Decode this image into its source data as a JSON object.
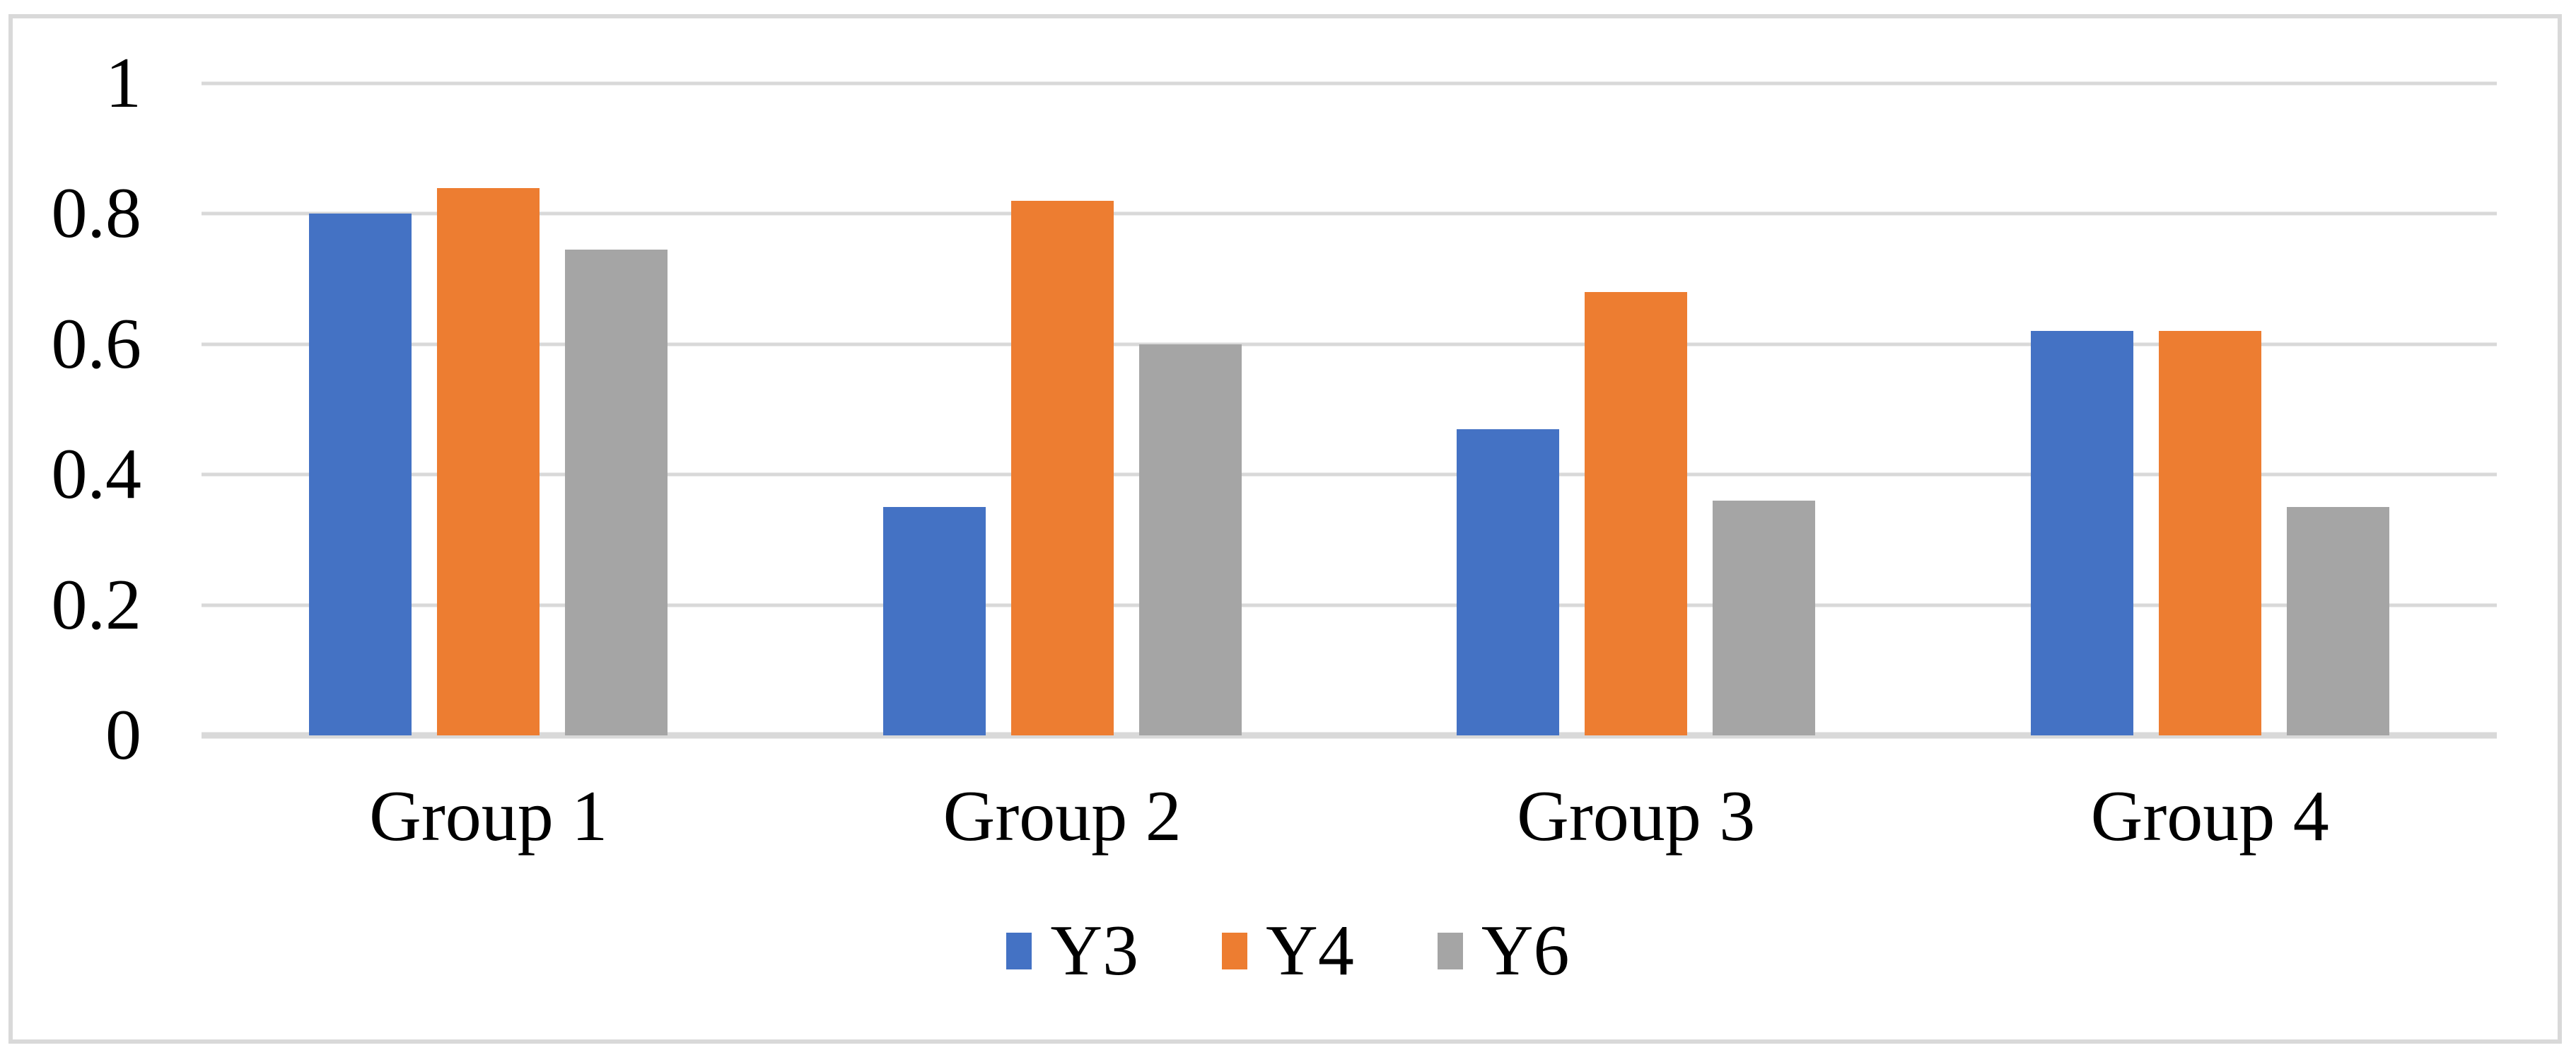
{
  "figure": {
    "background": "#ffffff",
    "border_color": "#d9d9d9",
    "text_color": "#000000"
  },
  "chart_data": {
    "type": "bar",
    "title": "",
    "xlabel": "",
    "ylabel": "",
    "categories": [
      "Group 1",
      "Group 2",
      "Group 3",
      "Group 4"
    ],
    "series": [
      {
        "name": "Y3",
        "color": "#4472C4",
        "values": [
          0.8,
          0.35,
          0.47,
          0.62
        ]
      },
      {
        "name": "Y4",
        "color": "#ED7D31",
        "values": [
          0.84,
          0.82,
          0.68,
          0.62
        ]
      },
      {
        "name": "Y6",
        "color": "#A5A5A5",
        "values": [
          0.745,
          0.6,
          0.36,
          0.35
        ]
      }
    ],
    "ylim": [
      0,
      1
    ],
    "yticks": [
      0,
      0.2,
      0.4,
      0.6,
      0.8,
      1
    ],
    "ytick_labels": [
      "0",
      "0.2",
      "0.4",
      "0.6",
      "0.8",
      "1"
    ],
    "grid": "horizontal",
    "gridline_color": "#d9d9d9",
    "axisline_color": "#d9d9d9",
    "legend_position": "bottom",
    "legend_labels": [
      "Y3",
      "Y4",
      "Y6"
    ]
  }
}
